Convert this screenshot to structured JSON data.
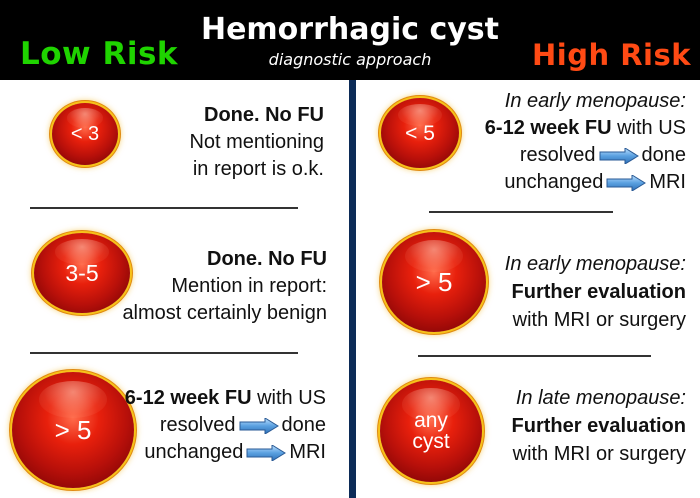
{
  "header": {
    "title": "Hemorrhagic cyst",
    "subtitle": "diagnostic approach",
    "low_risk": "Low Risk",
    "high_risk": "High Risk"
  },
  "low_risk": [
    {
      "size": "< 3",
      "heading": "Done. No FU",
      "line2": "Not mentioning",
      "line3": "in report is o.k."
    },
    {
      "size": "3-5",
      "heading": "Done. No FU",
      "line2": "Mention in report:",
      "line3": "almost certainly benign"
    },
    {
      "size": "> 5",
      "heading_bold": "6-12 week FU",
      "heading_rest": " with US",
      "resolved": "resolved",
      "done": "done",
      "unchanged": "unchanged",
      "mri": "MRI"
    }
  ],
  "high_risk": [
    {
      "size": "< 5",
      "context": "In early menopause:",
      "heading_bold": "6-12 week FU",
      "heading_rest": " with US",
      "resolved": "resolved",
      "done": "done",
      "unchanged": "unchanged",
      "mri": "MRI"
    },
    {
      "size": "> 5",
      "context": "In early menopause:",
      "heading": "Further evaluation",
      "line3": "with MRI or surgery"
    },
    {
      "size_line1": "any",
      "size_line2": "cyst",
      "context": "In late menopause:",
      "heading": "Further evaluation",
      "line3": "with MRI or surgery"
    }
  ],
  "colors": {
    "low_risk": "#1fd400",
    "high_risk": "#ff4a14",
    "header_bg": "#000000",
    "divider": "#0c2b57",
    "cyst": "#c8140a",
    "cyst_rim": "#f7c21a",
    "arrow": "#5aa0e0"
  },
  "icons": {
    "arrow": "right-arrow-icon"
  }
}
